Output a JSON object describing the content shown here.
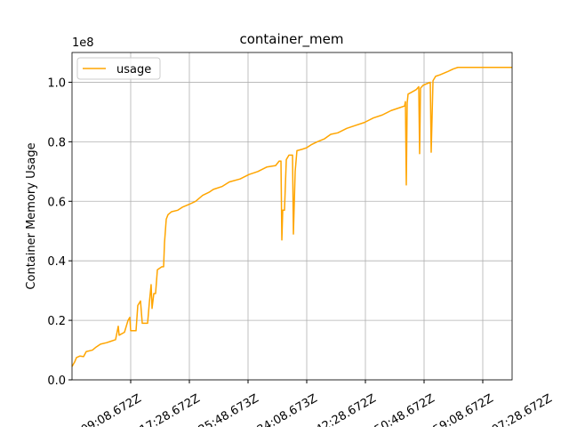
{
  "chart_data": {
    "type": "line",
    "title": "container_mem",
    "ylabel": "Container Memory Usage",
    "y_offset_label": "1e8",
    "x": [
      0,
      0.045,
      0.076,
      0.136,
      0.197,
      0.242,
      0.348,
      0.409,
      0.485,
      0.591,
      0.667,
      0.742,
      0.788,
      0.803,
      0.894,
      0.955,
      0.985,
      1.0,
      1.091,
      1.121,
      1.167,
      1.197,
      1.288,
      1.318,
      1.348,
      1.364,
      1.394,
      1.424,
      1.455,
      1.53,
      1.561,
      1.576,
      1.606,
      1.636,
      1.697,
      1.803,
      1.879,
      2.0,
      2.106,
      2.227,
      2.333,
      2.409,
      2.561,
      2.682,
      2.864,
      3.015,
      3.167,
      3.318,
      3.47,
      3.53,
      3.561,
      3.576,
      3.591,
      3.621,
      3.652,
      3.697,
      3.758,
      3.773,
      3.803,
      3.833,
      3.924,
      4.0,
      4.076,
      4.182,
      4.303,
      4.409,
      4.53,
      4.682,
      4.833,
      4.985,
      5.136,
      5.288,
      5.439,
      5.591,
      5.667,
      5.682,
      5.697,
      5.712,
      5.727,
      5.773,
      5.864,
      5.909,
      5.924,
      5.939,
      5.985,
      6.045,
      6.106,
      6.121,
      6.152,
      6.197,
      6.273,
      6.394,
      6.5,
      6.576,
      7.5
    ],
    "series": [
      {
        "name": "usage",
        "color": "#ffa500",
        "values": [
          4500000,
          6000000,
          7500000,
          8000000,
          7800000,
          9500000,
          10000000,
          11000000,
          12000000,
          12500000,
          13000000,
          13500000,
          18000000,
          15000000,
          16000000,
          20000000,
          21000000,
          16500000,
          16500000,
          25000000,
          26500000,
          19000000,
          19000000,
          26000000,
          32000000,
          24000000,
          29000000,
          29000000,
          37000000,
          38000000,
          38000000,
          46000000,
          54000000,
          55500000,
          56500000,
          57000000,
          58000000,
          59000000,
          60000000,
          62000000,
          63000000,
          64000000,
          65000000,
          66500000,
          67500000,
          69000000,
          70000000,
          71500000,
          72000000,
          73500000,
          73500000,
          47000000,
          57000000,
          57000000,
          74000000,
          75500000,
          75500000,
          49000000,
          70000000,
          77000000,
          77500000,
          78000000,
          79000000,
          80000000,
          81000000,
          82500000,
          83000000,
          84500000,
          85500000,
          86500000,
          88000000,
          89000000,
          90500000,
          91500000,
          92000000,
          93500000,
          65500000,
          93000000,
          96000000,
          96500000,
          97500000,
          98500000,
          76000000,
          98000000,
          99000000,
          99500000,
          100000000,
          76500000,
          100500000,
          102000000,
          102500000,
          103500000,
          104500000,
          105000000,
          105000000
        ]
      }
    ],
    "xlim": [
      0,
      7.5
    ],
    "xticks": [
      {
        "value": 1,
        "label": "09:08.672Z"
      },
      {
        "value": 2,
        "label": "17:28.672Z"
      },
      {
        "value": 3,
        "label": "25:48.673Z"
      },
      {
        "value": 4,
        "label": "34:08.673Z"
      },
      {
        "value": 5,
        "label": "42:28.672Z"
      },
      {
        "value": 6,
        "label": "50:48.672Z"
      },
      {
        "value": 7,
        "label": "59:08.672Z"
      },
      {
        "value": 8,
        "label": "07:28.672Z"
      }
    ],
    "ylim": [
      0,
      110000000
    ],
    "yticks": [
      {
        "value": 0,
        "label": "0.0"
      },
      {
        "value": 20000000,
        "label": "0.2"
      },
      {
        "value": 40000000,
        "label": "0.4"
      },
      {
        "value": 60000000,
        "label": "0.6"
      },
      {
        "value": 80000000,
        "label": "0.8"
      },
      {
        "value": 100000000,
        "label": "1.0"
      }
    ],
    "grid": true,
    "legend": "upper left"
  }
}
